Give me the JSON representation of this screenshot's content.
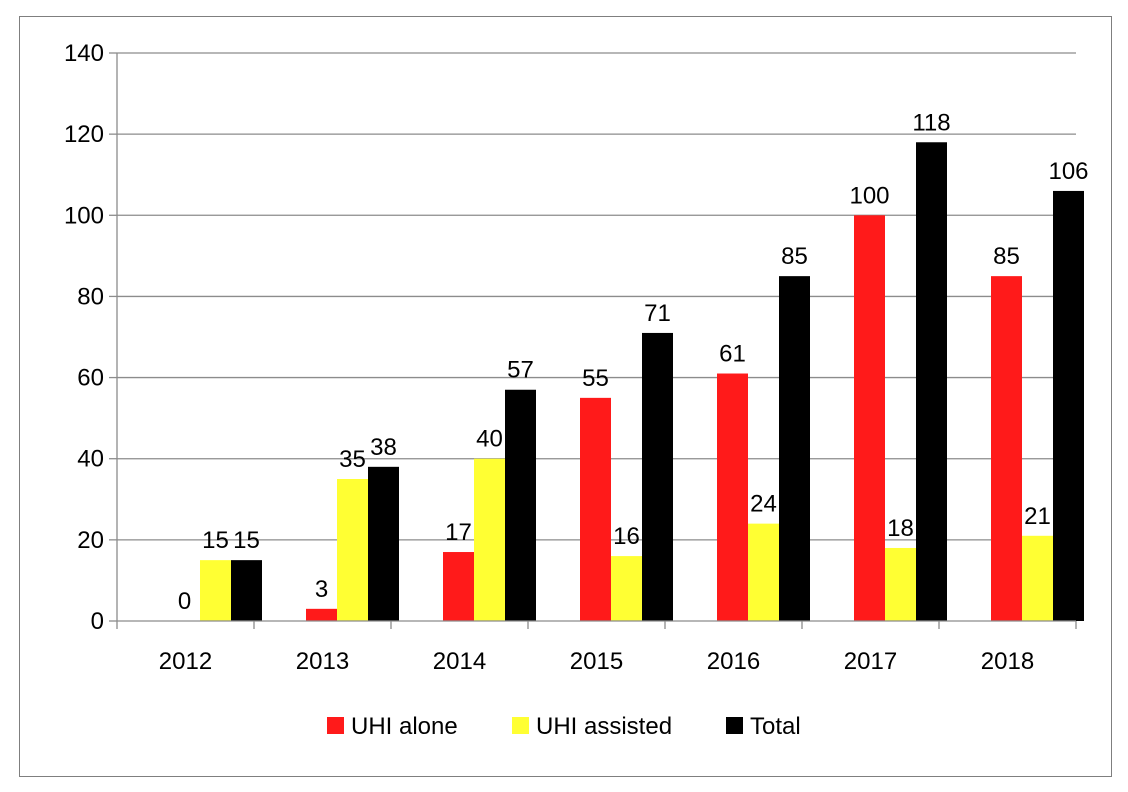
{
  "chart_data": {
    "type": "bar",
    "categories": [
      "2012",
      "2013",
      "2014",
      "2015",
      "2016",
      "2017",
      "2018"
    ],
    "series": [
      {
        "name": "UHI alone",
        "color": "#ff1a1a",
        "values": [
          0,
          3,
          17,
          55,
          61,
          100,
          85
        ]
      },
      {
        "name": "UHI assisted",
        "color": "#ffff33",
        "values": [
          15,
          35,
          40,
          16,
          24,
          18,
          21
        ]
      },
      {
        "name": "Total",
        "color": "#000000",
        "values": [
          15,
          38,
          57,
          71,
          85,
          118,
          106
        ]
      }
    ],
    "ylim": [
      0,
      140
    ],
    "yticks": [
      0,
      20,
      40,
      60,
      80,
      100,
      120,
      140
    ],
    "grid": true,
    "legend": "bottom",
    "data_labels": true
  }
}
